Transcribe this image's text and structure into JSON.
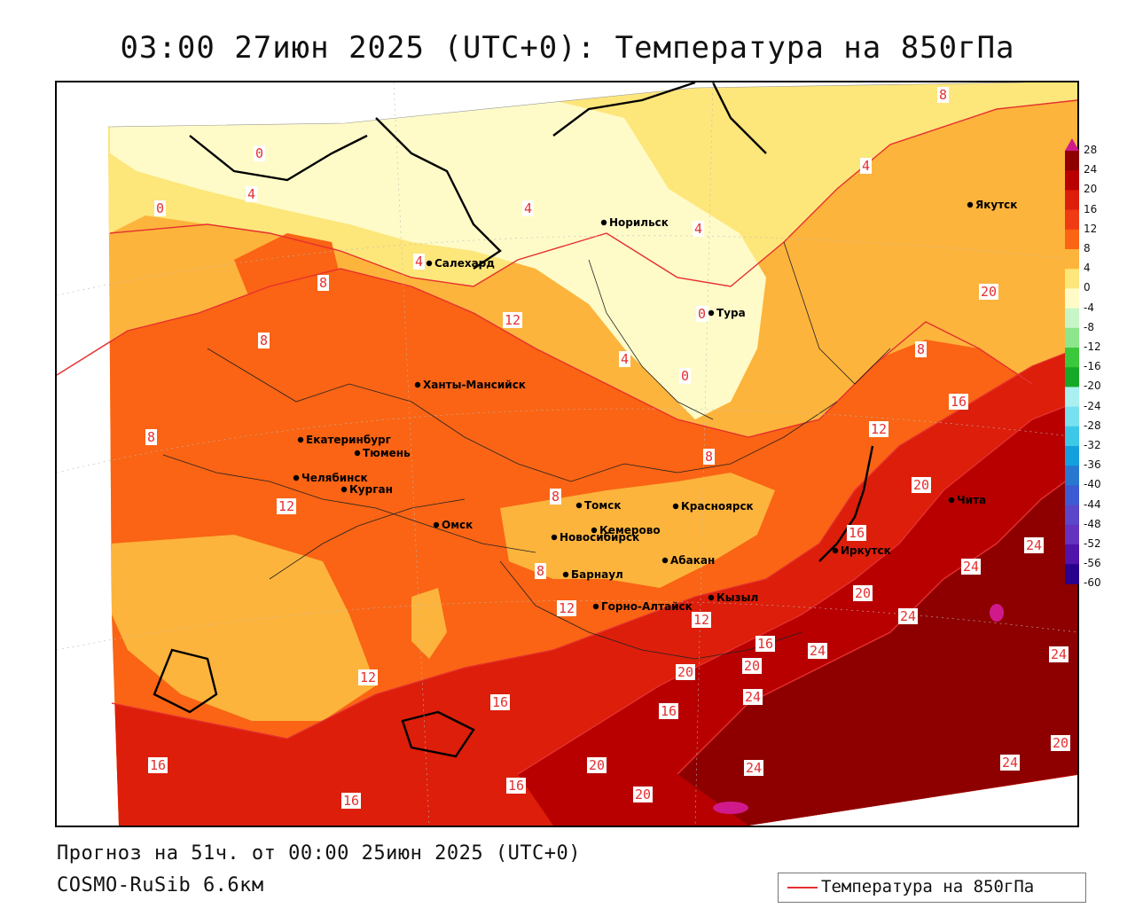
{
  "title": "03:00 27июн 2025 (UTC+0): Температура на 850гПа",
  "forecast_line": "Прогноз на 51ч. от 00:00 25июн 2025 (UTC+0)",
  "model_line": "COSMO-RuSib 6.6км",
  "legend": {
    "label": "Температура на 850гПа",
    "color": "#e53030"
  },
  "colorbar": {
    "levels": [
      "28",
      "24",
      "20",
      "16",
      "12",
      "8",
      "4",
      "0",
      "-4",
      "-8",
      "-12",
      "-16",
      "-20",
      "-24",
      "-28",
      "-32",
      "-36",
      "-40",
      "-44",
      "-48",
      "-52",
      "-56",
      "-60"
    ],
    "colors": [
      "#d01a8c",
      "#8e0000",
      "#b80000",
      "#dc1e0a",
      "#ef3c14",
      "#fa6414",
      "#fdb43c",
      "#fde67a",
      "#fffbc8",
      "#c8f5c8",
      "#8ce68c",
      "#3cc83c",
      "#14aa28",
      "#aaf0f0",
      "#78e1f0",
      "#3cc8e6",
      "#14a0dc",
      "#2878d2",
      "#3c5ad2",
      "#5a46c8",
      "#6432be",
      "#5014aa",
      "#28008c"
    ]
  },
  "cities": [
    {
      "name": "Норильск"
    },
    {
      "name": "Якутск"
    },
    {
      "name": "Салехард"
    },
    {
      "name": "Тура"
    },
    {
      "name": "Ханты-Мансийск"
    },
    {
      "name": "Екатеринбург"
    },
    {
      "name": "Тюмень"
    },
    {
      "name": "Челябинск"
    },
    {
      "name": "Курган"
    },
    {
      "name": "Омск"
    },
    {
      "name": "Томск"
    },
    {
      "name": "Красноярск"
    },
    {
      "name": "Новосибирск"
    },
    {
      "name": "Кемерово"
    },
    {
      "name": "Абакан"
    },
    {
      "name": "Иркутск"
    },
    {
      "name": "Барнаул"
    },
    {
      "name": "Горно-Алтайск"
    },
    {
      "name": "Кызыл"
    },
    {
      "name": "Чита"
    }
  ],
  "isotherm_labels": [
    "8",
    "4",
    "0",
    "4",
    "0",
    "4",
    "4",
    "4",
    "8",
    "12",
    "20",
    "0",
    "0",
    "8",
    "8",
    "8",
    "0",
    "4",
    "8",
    "16",
    "12",
    "8",
    "20",
    "8",
    "8",
    "16",
    "12",
    "24",
    "24",
    "24",
    "12",
    "12",
    "20",
    "24",
    "20",
    "24",
    "16",
    "20",
    "24",
    "16",
    "16",
    "20",
    "20",
    "24",
    "12",
    "16",
    "16",
    "20",
    "24",
    "16"
  ]
}
